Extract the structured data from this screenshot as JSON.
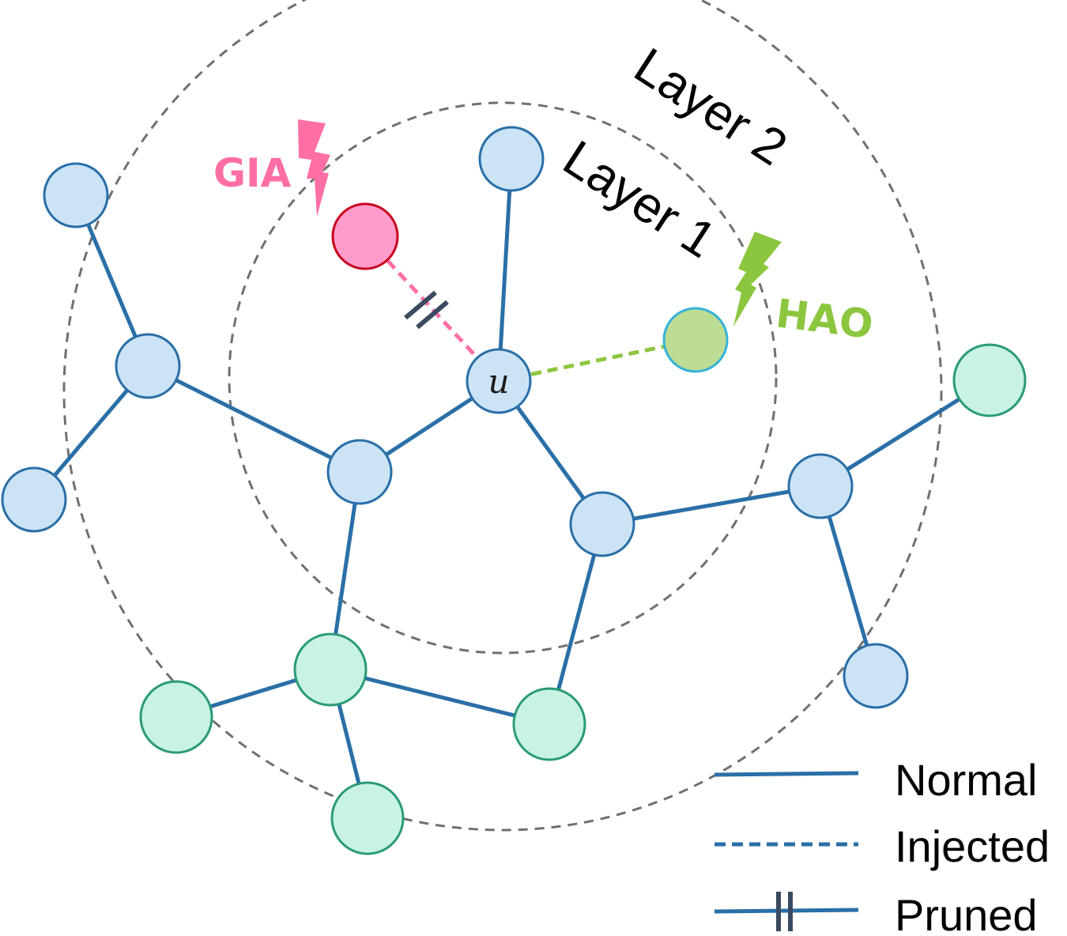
{
  "layers": {
    "layer1": "Layer 1",
    "layer2": "Layer 2"
  },
  "attacks": {
    "gia": "GIA",
    "hao": "HAO"
  },
  "center_node": {
    "label": "u"
  },
  "legend": {
    "normal": "Normal",
    "injected": "Injected",
    "pruned": "Pruned"
  },
  "colors": {
    "edge": "#2a6fa8",
    "node_blue_fill": "#cce3f5",
    "node_blue_stroke": "#2a6fa8",
    "node_green_fill": "#c8f3e4",
    "node_green_stroke": "#2a9a78",
    "gia_color": "#ff6fa5",
    "gia_node_fill": "#ff9ccb",
    "gia_node_stroke": "#c8001e",
    "hao_color": "#8cc63f",
    "hao_node_fill": "#bddc94",
    "hao_node_stroke": "#37b2d8",
    "layer_ring": "#707070",
    "prune_mark": "#3a4a60"
  }
}
